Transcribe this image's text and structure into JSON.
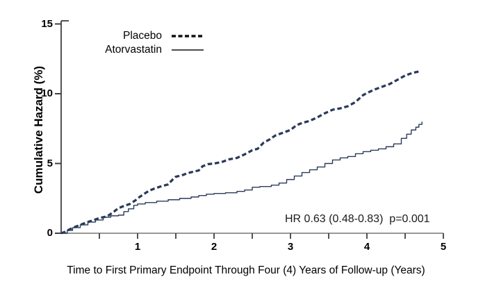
{
  "figure": {
    "background": "#ffffff",
    "annotation": "HR 0.63 (0.48-0.83)  p=0.001",
    "colors": {
      "curve": "#2b3a5a",
      "x_axis_line": "#8a8a8a",
      "y_axis_line": "#3f3f3f",
      "tick": "#3f3f3f",
      "text": "#000000"
    },
    "x_axis": {
      "title": "Time to First Primary Endpoint Through Four (4) Years of Follow-up (Years)",
      "range": [
        0,
        5
      ],
      "major_ticks": [
        1,
        2,
        3,
        4,
        5
      ],
      "minor_ticks": [
        0.5,
        1.5,
        2.5,
        3.5,
        4.5
      ]
    },
    "y_axis": {
      "title": "Cumulative Hazard (%)",
      "range": [
        0,
        15
      ],
      "major_ticks": [
        0,
        5,
        10,
        15
      ]
    },
    "legend": [
      {
        "label": "Placebo",
        "style": "dashed"
      },
      {
        "label": "Atorvastatin",
        "style": "solid"
      }
    ]
  },
  "chart_data": {
    "type": "line",
    "title": "",
    "xlabel": "Time to First Primary Endpoint Through Four (4) Years of Follow-up (Years)",
    "ylabel": "Cumulative Hazard (%)",
    "xlim": [
      0,
      5
    ],
    "ylim": [
      0,
      15
    ],
    "grid": false,
    "legend_position": "upper-left-inside",
    "annotation": "HR 0.63 (0.48-0.83)  p=0.001",
    "series": [
      {
        "name": "Placebo",
        "style": "dashed",
        "render": "polyline",
        "color": "#2b3a5a",
        "line_width": 3.3,
        "points": [
          [
            0,
            0
          ],
          [
            0.05,
            0.1
          ],
          [
            0.1,
            0.25
          ],
          [
            0.18,
            0.45
          ],
          [
            0.25,
            0.6
          ],
          [
            0.32,
            0.75
          ],
          [
            0.4,
            0.9
          ],
          [
            0.48,
            1.05
          ],
          [
            0.55,
            1.15
          ],
          [
            0.6,
            1.2
          ],
          [
            0.68,
            1.5
          ],
          [
            0.75,
            1.8
          ],
          [
            0.82,
            1.95
          ],
          [
            0.9,
            2.1
          ],
          [
            0.97,
            2.35
          ],
          [
            1.0,
            2.5
          ],
          [
            1.08,
            2.8
          ],
          [
            1.15,
            3.05
          ],
          [
            1.22,
            3.2
          ],
          [
            1.3,
            3.35
          ],
          [
            1.4,
            3.5
          ],
          [
            1.45,
            3.8
          ],
          [
            1.5,
            4.05
          ],
          [
            1.58,
            4.15
          ],
          [
            1.65,
            4.3
          ],
          [
            1.72,
            4.4
          ],
          [
            1.8,
            4.5
          ],
          [
            1.85,
            4.8
          ],
          [
            1.92,
            4.95
          ],
          [
            2.0,
            5.0
          ],
          [
            2.1,
            5.1
          ],
          [
            2.2,
            5.3
          ],
          [
            2.3,
            5.4
          ],
          [
            2.4,
            5.65
          ],
          [
            2.5,
            5.95
          ],
          [
            2.57,
            6.05
          ],
          [
            2.65,
            6.5
          ],
          [
            2.72,
            6.7
          ],
          [
            2.8,
            7.0
          ],
          [
            2.9,
            7.2
          ],
          [
            3.0,
            7.4
          ],
          [
            3.08,
            7.75
          ],
          [
            3.15,
            7.9
          ],
          [
            3.25,
            8.05
          ],
          [
            3.35,
            8.3
          ],
          [
            3.45,
            8.6
          ],
          [
            3.55,
            8.85
          ],
          [
            3.65,
            8.95
          ],
          [
            3.75,
            9.1
          ],
          [
            3.85,
            9.4
          ],
          [
            3.95,
            9.9
          ],
          [
            4.0,
            10.05
          ],
          [
            4.1,
            10.3
          ],
          [
            4.2,
            10.5
          ],
          [
            4.3,
            10.7
          ],
          [
            4.4,
            11.0
          ],
          [
            4.5,
            11.3
          ],
          [
            4.6,
            11.5
          ],
          [
            4.69,
            11.6
          ]
        ]
      },
      {
        "name": "Atorvastatin",
        "style": "solid",
        "render": "step",
        "color": "#2b3a5a",
        "line_width": 1.4,
        "points": [
          [
            0,
            0
          ],
          [
            0.08,
            0.2
          ],
          [
            0.15,
            0.4
          ],
          [
            0.25,
            0.6
          ],
          [
            0.35,
            0.8
          ],
          [
            0.45,
            0.95
          ],
          [
            0.55,
            1.15
          ],
          [
            0.65,
            1.25
          ],
          [
            0.75,
            1.3
          ],
          [
            0.82,
            1.55
          ],
          [
            0.88,
            1.75
          ],
          [
            0.95,
            2.0
          ],
          [
            1.0,
            2.1
          ],
          [
            1.1,
            2.2
          ],
          [
            1.25,
            2.3
          ],
          [
            1.4,
            2.4
          ],
          [
            1.55,
            2.5
          ],
          [
            1.7,
            2.6
          ],
          [
            1.8,
            2.7
          ],
          [
            1.9,
            2.8
          ],
          [
            2.0,
            2.85
          ],
          [
            2.15,
            2.9
          ],
          [
            2.3,
            3.0
          ],
          [
            2.4,
            3.1
          ],
          [
            2.5,
            3.3
          ],
          [
            2.6,
            3.35
          ],
          [
            2.75,
            3.45
          ],
          [
            2.85,
            3.6
          ],
          [
            2.95,
            3.85
          ],
          [
            3.05,
            4.1
          ],
          [
            3.15,
            4.35
          ],
          [
            3.25,
            4.55
          ],
          [
            3.35,
            4.75
          ],
          [
            3.45,
            5.0
          ],
          [
            3.55,
            5.25
          ],
          [
            3.65,
            5.4
          ],
          [
            3.75,
            5.5
          ],
          [
            3.85,
            5.7
          ],
          [
            3.95,
            5.85
          ],
          [
            4.05,
            5.95
          ],
          [
            4.15,
            6.05
          ],
          [
            4.25,
            6.2
          ],
          [
            4.35,
            6.4
          ],
          [
            4.45,
            6.8
          ],
          [
            4.52,
            7.1
          ],
          [
            4.58,
            7.4
          ],
          [
            4.64,
            7.6
          ],
          [
            4.68,
            7.8
          ],
          [
            4.72,
            8.0
          ]
        ]
      }
    ]
  }
}
